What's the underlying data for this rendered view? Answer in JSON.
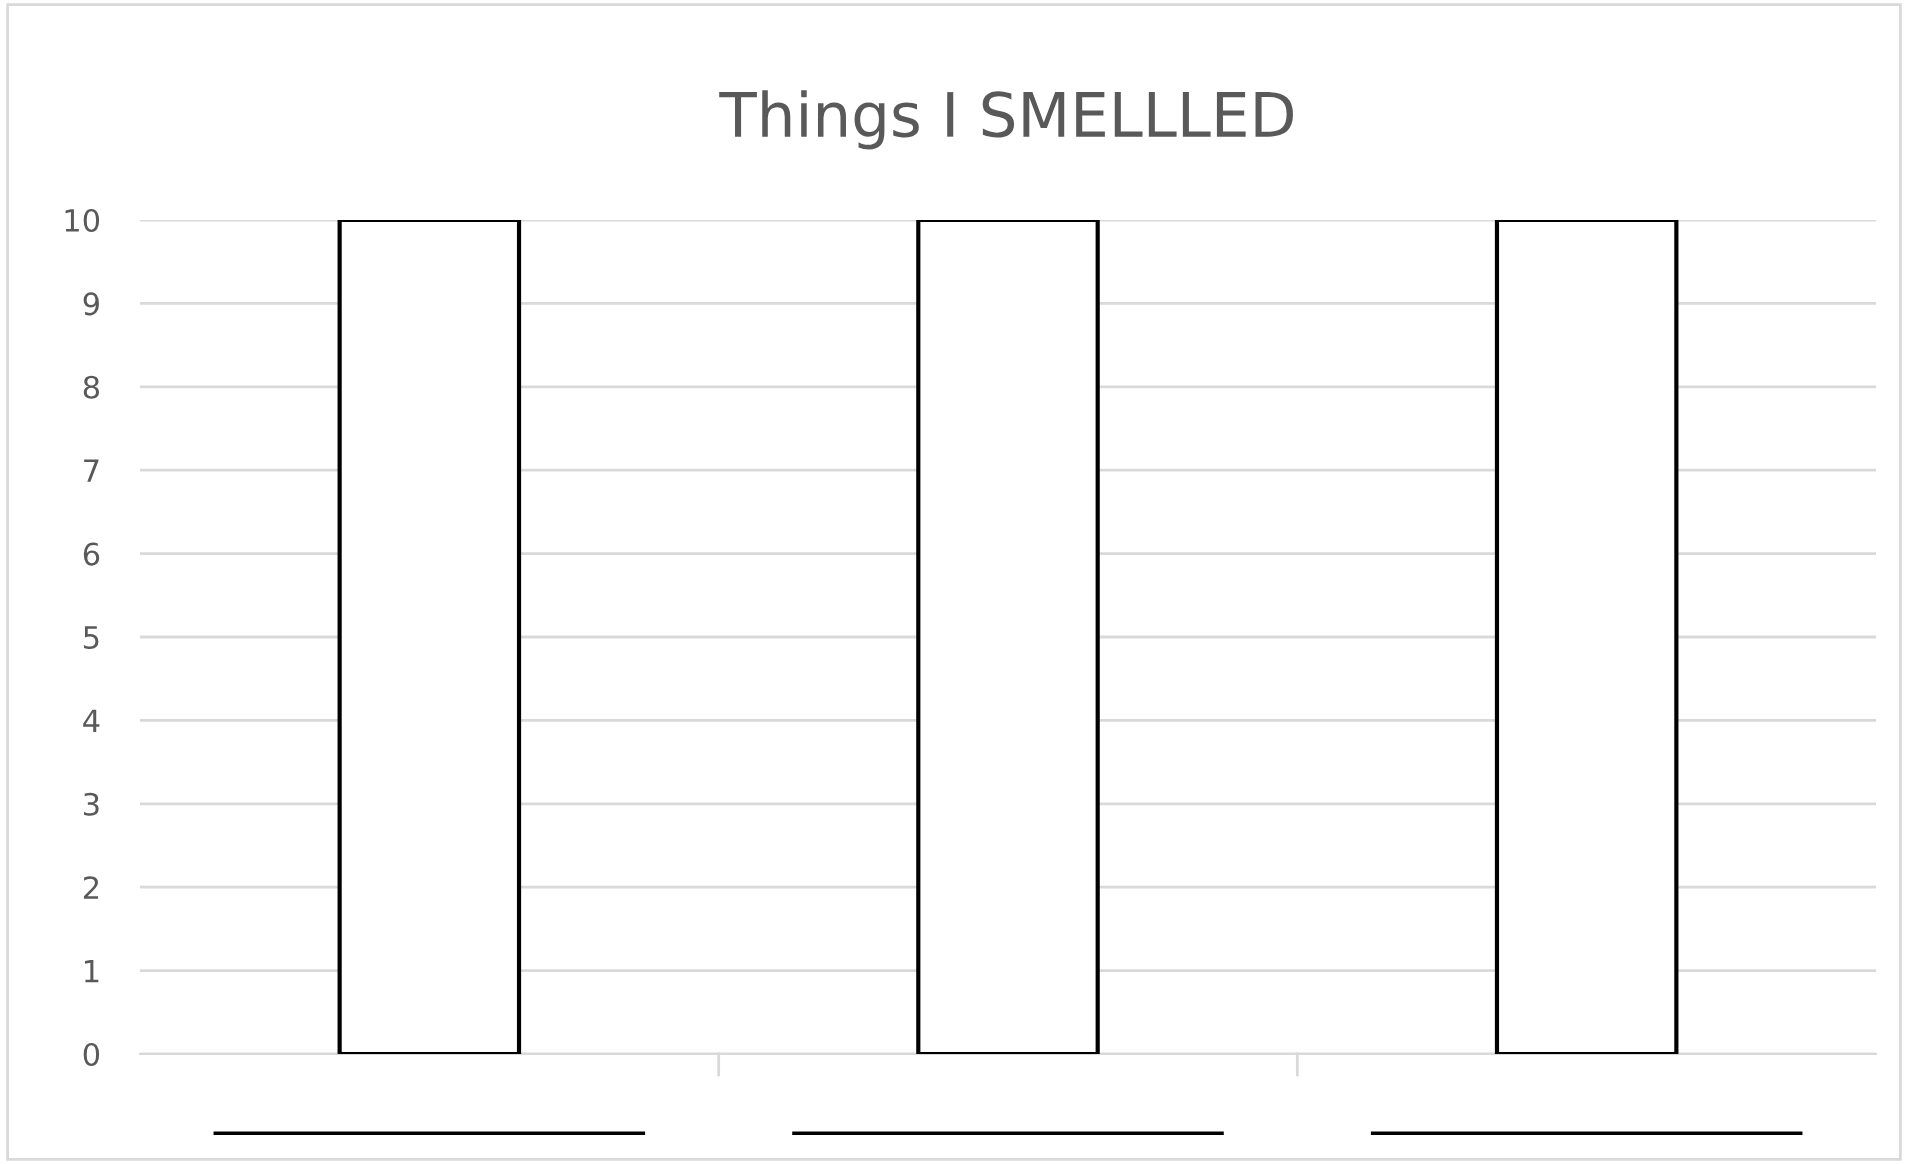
{
  "chart_data": {
    "type": "bar",
    "title": "Things I SMELLLED",
    "categories": [
      null,
      null,
      null
    ],
    "values": [
      10,
      10,
      10
    ],
    "color": "#ffffff",
    "ylim": [
      0,
      10
    ],
    "yticks": [
      0,
      1,
      2,
      3,
      4,
      5,
      6,
      7,
      8,
      9,
      10
    ],
    "grid": "y"
  }
}
